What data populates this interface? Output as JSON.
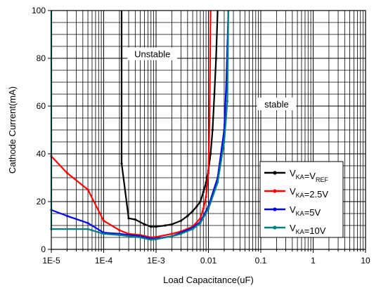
{
  "chart_data": {
    "type": "line",
    "xlabel": "Load Capacitance(uF)",
    "ylabel": "Cathode Current(mA)",
    "x_scale": "log",
    "xlim": [
      1e-05,
      10
    ],
    "ylim": [
      0,
      100
    ],
    "x_tick_values": [
      1e-05,
      0.0001,
      0.001,
      0.01,
      0.1,
      1,
      10
    ],
    "x_tick_labels": [
      "1E-5",
      "1E-4",
      "1E-3",
      "0.01",
      "0.1",
      "1",
      "10"
    ],
    "y_tick_values": [
      0,
      20,
      40,
      60,
      80,
      100
    ],
    "y_tick_labels": [
      "0",
      "20",
      "40",
      "60",
      "80",
      "100"
    ],
    "grid": true,
    "legend_position": "lower-right",
    "annotations": [
      {
        "text": "Unstable",
        "x": 0.00085,
        "y": 81
      },
      {
        "text": "stable",
        "x": 0.2,
        "y": 60
      }
    ],
    "series": [
      {
        "name_main": "V",
        "name_sub1": "KA",
        "name_mid": "=V",
        "name_sub2": "REF",
        "name_tail": "",
        "color": "#000000",
        "points": [
          [
            0.00022,
            100
          ],
          [
            0.00022,
            36
          ],
          [
            0.0003,
            13
          ],
          [
            0.0004,
            12.5
          ],
          [
            0.0006,
            10.5
          ],
          [
            0.0008,
            9.5
          ],
          [
            0.001,
            9.5
          ],
          [
            0.0015,
            10
          ],
          [
            0.002,
            10.5
          ],
          [
            0.003,
            12
          ],
          [
            0.004,
            14
          ],
          [
            0.005,
            16
          ],
          [
            0.006,
            18
          ],
          [
            0.007,
            20
          ],
          [
            0.008,
            24
          ],
          [
            0.009,
            28
          ],
          [
            0.01,
            33
          ],
          [
            0.011,
            40
          ],
          [
            0.012,
            50
          ],
          [
            0.013,
            65
          ],
          [
            0.014,
            80
          ],
          [
            0.015,
            100
          ]
        ]
      },
      {
        "name_main": "V",
        "name_sub1": "KA",
        "name_mid": "=2.5V",
        "name_sub2": "",
        "name_tail": "",
        "color": "#ff0000",
        "points": [
          [
            1e-05,
            39
          ],
          [
            2e-05,
            32
          ],
          [
            5e-05,
            25
          ],
          [
            0.0001,
            12
          ],
          [
            0.0002,
            8
          ],
          [
            0.0003,
            6.5
          ],
          [
            0.0005,
            6
          ],
          [
            0.0008,
            5
          ],
          [
            0.001,
            5.2
          ],
          [
            0.002,
            6.5
          ],
          [
            0.003,
            7.5
          ],
          [
            0.005,
            9.5
          ],
          [
            0.007,
            13
          ],
          [
            0.008,
            17
          ],
          [
            0.009,
            22
          ],
          [
            0.01,
            32
          ],
          [
            0.0105,
            55
          ],
          [
            0.011,
            100
          ]
        ]
      },
      {
        "name_main": "V",
        "name_sub1": "KA",
        "name_mid": "=5V",
        "name_sub2": "",
        "name_tail": "",
        "color": "#0000ff",
        "points": [
          [
            1e-05,
            16.5
          ],
          [
            2e-05,
            14
          ],
          [
            5e-05,
            11
          ],
          [
            0.0001,
            7
          ],
          [
            0.0002,
            6.5
          ],
          [
            0.0005,
            5.5
          ],
          [
            0.0008,
            4.5
          ],
          [
            0.001,
            4.5
          ],
          [
            0.002,
            5.5
          ],
          [
            0.003,
            7
          ],
          [
            0.005,
            9
          ],
          [
            0.007,
            11.5
          ],
          [
            0.01,
            18
          ],
          [
            0.015,
            30
          ],
          [
            0.02,
            50
          ],
          [
            0.022,
            70
          ],
          [
            0.023,
            85
          ],
          [
            0.024,
            100
          ]
        ]
      },
      {
        "name_main": "V",
        "name_sub1": "KA",
        "name_mid": "=10V",
        "name_sub2": "",
        "name_tail": "",
        "color": "#008080",
        "points": [
          [
            1e-05,
            100
          ],
          [
            1e-05,
            8.5
          ],
          [
            5e-05,
            8.5
          ],
          [
            0.0001,
            6.5
          ],
          [
            0.0002,
            6
          ],
          [
            0.0005,
            5
          ],
          [
            0.0008,
            4
          ],
          [
            0.001,
            4.2
          ],
          [
            0.002,
            5.5
          ],
          [
            0.003,
            6.5
          ],
          [
            0.005,
            8.5
          ],
          [
            0.007,
            11
          ],
          [
            0.01,
            17
          ],
          [
            0.015,
            28
          ],
          [
            0.02,
            45
          ],
          [
            0.023,
            62
          ],
          [
            0.0235,
            80
          ],
          [
            0.024,
            100
          ]
        ]
      }
    ]
  }
}
